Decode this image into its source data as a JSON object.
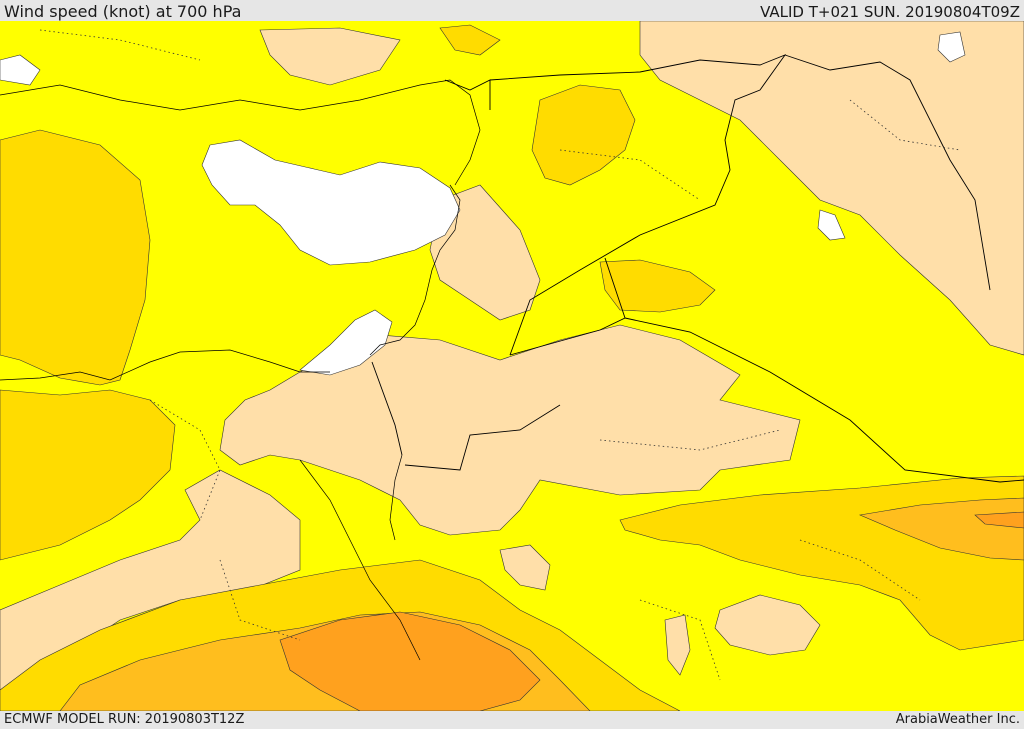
{
  "header": {
    "title": "Wind speed (knot) at 700 hPa",
    "valid": "VALID T+021 SUN. 20190804T09Z"
  },
  "footer": {
    "model_run": "ECMWF MODEL RUN: 20190803T12Z",
    "credit": "ArabiaWeather Inc."
  },
  "colors": {
    "calm": "#ffffff",
    "light": "#ffdfa9",
    "moderate": "#ffff00",
    "fresh": "#ffdc00",
    "strong": "#ffbe1e",
    "very_strong": "#ffa11e",
    "borders": "#000000",
    "panel": "#e6e6e6"
  }
}
